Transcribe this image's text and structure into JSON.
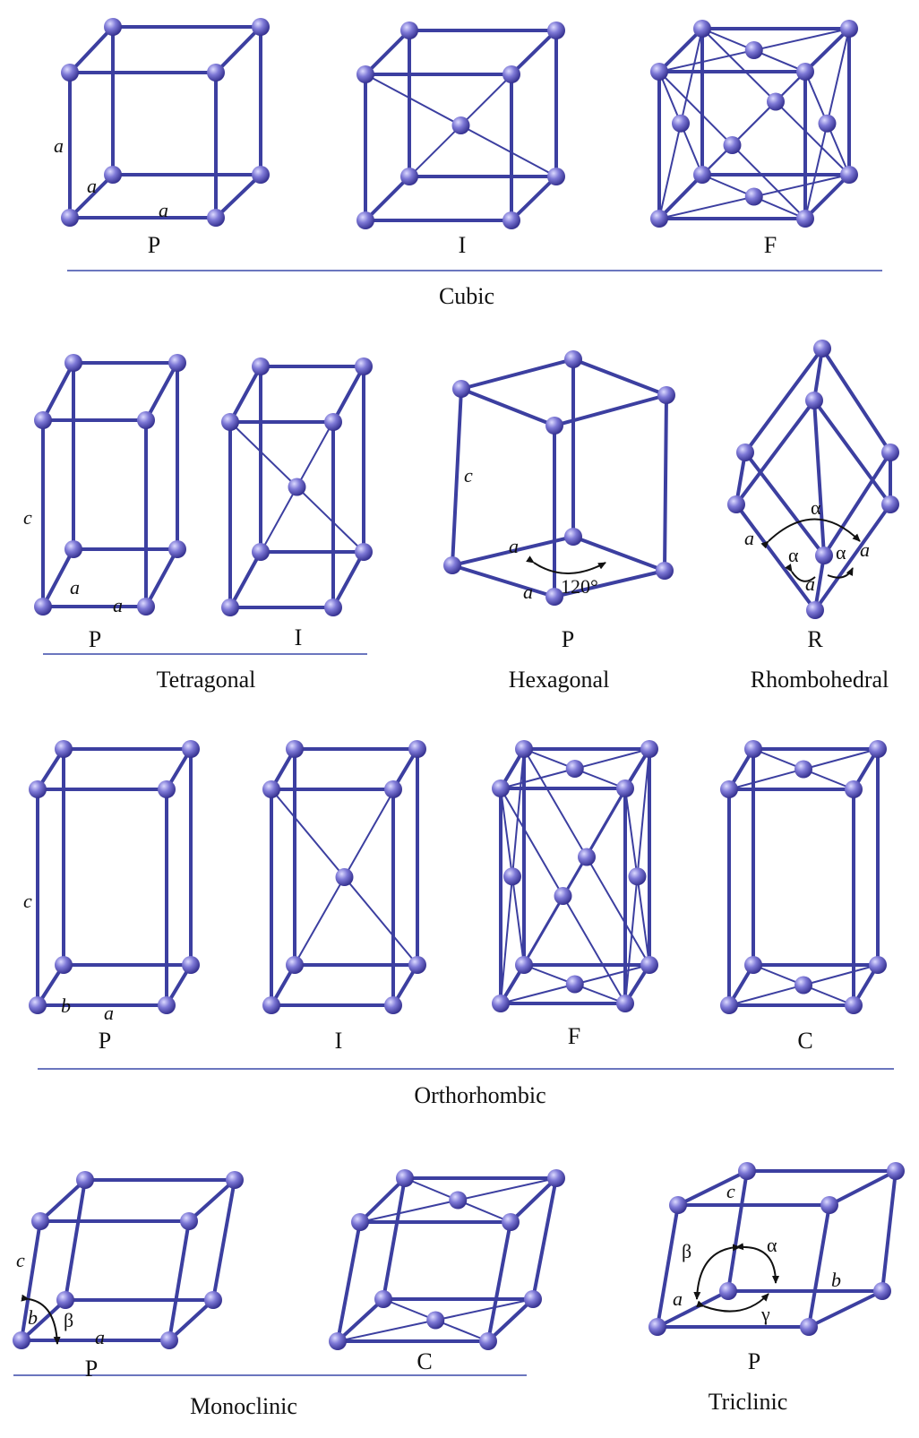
{
  "colors": {
    "edge": "#3c3fa0",
    "atom_light": "#b9b6f2",
    "atom_mid": "#6b66cc",
    "atom_dark": "#3a3596",
    "separator": "#3a49a8"
  },
  "groups": [
    {
      "name": "Cubic",
      "types": [
        "P",
        "I",
        "F"
      ]
    },
    {
      "name": "Tetragonal",
      "types": [
        "P",
        "I"
      ]
    },
    {
      "name": "Hexagonal",
      "types": [
        "P"
      ]
    },
    {
      "name": "Rhombohedral",
      "types": [
        "R"
      ]
    },
    {
      "name": "Orthorhombic",
      "types": [
        "P",
        "I",
        "F",
        "C"
      ]
    },
    {
      "name": "Monoclinic",
      "types": [
        "P",
        "C"
      ]
    },
    {
      "name": "Triclinic",
      "types": [
        "P"
      ]
    }
  ],
  "axis_labels": {
    "a": "a",
    "b": "b",
    "c": "c"
  },
  "angle_labels": {
    "alpha": "α",
    "beta": "β",
    "gamma": "γ",
    "hex_angle": "120°"
  }
}
